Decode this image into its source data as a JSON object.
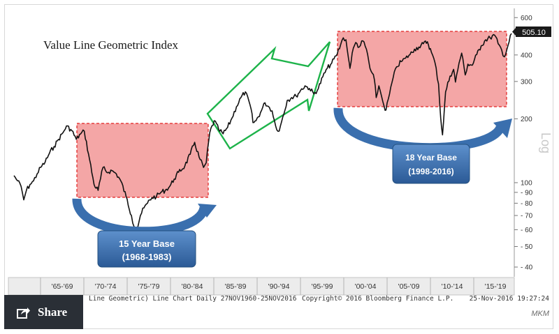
{
  "chart_data": {
    "type": "line",
    "title": "Value Line Geometric Index",
    "scale": "log",
    "ylabel": "Log",
    "ylim": [
      37,
      640
    ],
    "yticks": [
      40,
      50,
      60,
      70,
      80,
      90,
      100,
      200,
      300,
      400,
      500,
      600
    ],
    "last_value_label": "505.10",
    "x_period_labels": [
      "'65-'69",
      "'70-'74",
      "'75-'79",
      "'80-'84",
      "'85-'89",
      "'90-'94",
      "'95-'99",
      "'00-'04",
      "'05-'09",
      "'10-'14",
      "'15-'19"
    ],
    "series": [
      {
        "x": [
          1961.0,
          1961.4,
          1961.8,
          1962.1,
          1962.4,
          1962.8,
          1963.2,
          1963.6,
          1964.0,
          1964.5,
          1965.0,
          1965.5,
          1966.0,
          1966.5,
          1966.9,
          1967.5,
          1968.0,
          1968.5,
          1968.9,
          1969.5,
          1970.0,
          1970.45,
          1971.0,
          1971.4,
          1972.0,
          1972.5,
          1973.0,
          1973.6,
          1974.2,
          1974.5,
          1974.8,
          1975.2,
          1975.6,
          1976.0,
          1976.5,
          1977.0,
          1977.5,
          1978.0,
          1978.5,
          1979.0,
          1979.5,
          1980.2,
          1980.8,
          1981.3,
          1981.8,
          1982.3,
          1982.6,
          1983.0,
          1983.5,
          1984.0,
          1984.5,
          1985.0,
          1985.5,
          1986.0,
          1986.5,
          1987.0,
          1987.65,
          1987.85,
          1988.2,
          1988.7,
          1989.2,
          1989.7,
          1990.0,
          1990.4,
          1990.8,
          1991.2,
          1991.7,
          1992.2,
          1992.7,
          1993.2,
          1993.7,
          1994.2,
          1994.7,
          1995.2,
          1995.7,
          1996.2,
          1996.7,
          1997.2,
          1997.7,
          1998.0,
          1998.3,
          1998.6,
          1998.75,
          1999.0,
          1999.4,
          1999.8,
          2000.2,
          2000.6,
          2001.0,
          2001.5,
          2001.7,
          2002.0,
          2002.3,
          2002.6,
          2002.8,
          2003.2,
          2003.6,
          2004.0,
          2004.5,
          2005.0,
          2005.5,
          2006.0,
          2006.5,
          2007.0,
          2007.45,
          2007.9,
          2008.3,
          2008.7,
          2008.95,
          2009.15,
          2009.5,
          2010.0,
          2010.4,
          2010.6,
          2011.0,
          2011.3,
          2011.7,
          2012.0,
          2012.5,
          2013.0,
          2013.5,
          2014.0,
          2014.5,
          2015.0,
          2015.4,
          2015.8,
          2016.1,
          2016.5,
          2016.9
        ],
        "values": [
          108,
          102,
          96,
          83,
          92,
          98,
          102,
          110,
          118,
          125,
          138,
          148,
          160,
          172,
          185,
          176,
          160,
          170,
          175,
          128,
          98,
          92,
          118,
          112,
          114,
          110,
          102,
          86,
          70,
          62,
          60,
          70,
          76,
          80,
          85,
          86,
          90,
          92,
          96,
          104,
          112,
          120,
          136,
          155,
          132,
          118,
          124,
          172,
          196,
          178,
          170,
          182,
          202,
          228,
          252,
          268,
          222,
          192,
          196,
          214,
          238,
          226,
          218,
          185,
          175,
          204,
          244,
          252,
          256,
          272,
          286,
          278,
          262,
          278,
          316,
          346,
          366,
          396,
          446,
          482,
          472,
          382,
          346,
          408,
          458,
          436,
          466,
          426,
          346,
          306,
          252,
          286,
          256,
          228,
          220,
          262,
          312,
          352,
          372,
          386,
          402,
          426,
          436,
          452,
          462,
          412,
          368,
          292,
          202,
          168,
          268,
          318,
          342,
          298,
          366,
          408,
          322,
          362,
          358,
          402,
          442,
          472,
          482,
          496,
          452,
          422,
          392,
          442,
          505.1
        ]
      }
    ],
    "annotations": [
      {
        "type": "box",
        "text": "15 Year Base",
        "subtext": "(1968-1983)"
      },
      {
        "type": "box",
        "text": "18 Year Base",
        "subtext": "(1998-2016)"
      }
    ]
  },
  "footer": {
    "description": "Line Geometric) Line Chart  Daily 27NOV1960-25NOV2016",
    "copyright": "Copyright© 2016 Bloomberg Finance L.P.",
    "timestamp": "25-Nov-2016 19:27:24"
  },
  "share": {
    "label": "Share",
    "icon": "share-icon"
  },
  "watermark": "MKM",
  "colors": {
    "base_fill": "#f4a6a6",
    "base_border": "#e02020",
    "arrow_blue": "#3a6fae",
    "channel_green": "#1db34a",
    "line": "#111111"
  }
}
